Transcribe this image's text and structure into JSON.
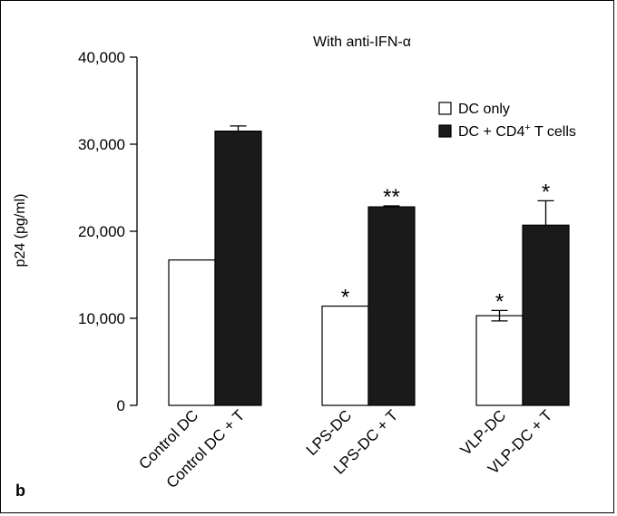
{
  "panel_label": "b",
  "chart_data": {
    "type": "bar",
    "title": "With anti-IFN-α",
    "xlabel": "",
    "ylabel": "p24 (pg/ml)",
    "ylim": [
      0,
      40000
    ],
    "yticks": [
      0,
      10000,
      20000,
      30000,
      40000
    ],
    "ytick_labels": [
      "0",
      "10,000",
      "20,000",
      "30,000",
      "40,000"
    ],
    "grid": false,
    "legend_position": "top-right",
    "groups": [
      {
        "bars": [
          {
            "label": "Control DC",
            "series": "DC only",
            "value": 16700,
            "error": 0,
            "significance": ""
          },
          {
            "label": "Control DC + T",
            "series": "DC + CD4+ T cells",
            "value": 31500,
            "error": 600,
            "significance": ""
          }
        ]
      },
      {
        "bars": [
          {
            "label": "LPS-DC",
            "series": "DC only",
            "value": 11400,
            "error": 0,
            "significance": "*"
          },
          {
            "label": "LPS-DC + T",
            "series": "DC + CD4+ T cells",
            "value": 22800,
            "error": 120,
            "significance": "**"
          }
        ]
      },
      {
        "bars": [
          {
            "label": "VLP-DC",
            "series": "DC only",
            "value": 10300,
            "error": 600,
            "significance": "*"
          },
          {
            "label": "VLP-DC + T",
            "series": "DC + CD4+ T cells",
            "value": 20700,
            "error": 2800,
            "significance": "*"
          }
        ]
      }
    ],
    "legend": [
      {
        "label_main": "DC only",
        "label_sup": "",
        "label_tail": "",
        "fill": "#ffffff"
      },
      {
        "label_main": "DC + CD4",
        "label_sup": "+",
        "label_tail": " T cells",
        "fill": "#1a1a1a"
      }
    ]
  }
}
